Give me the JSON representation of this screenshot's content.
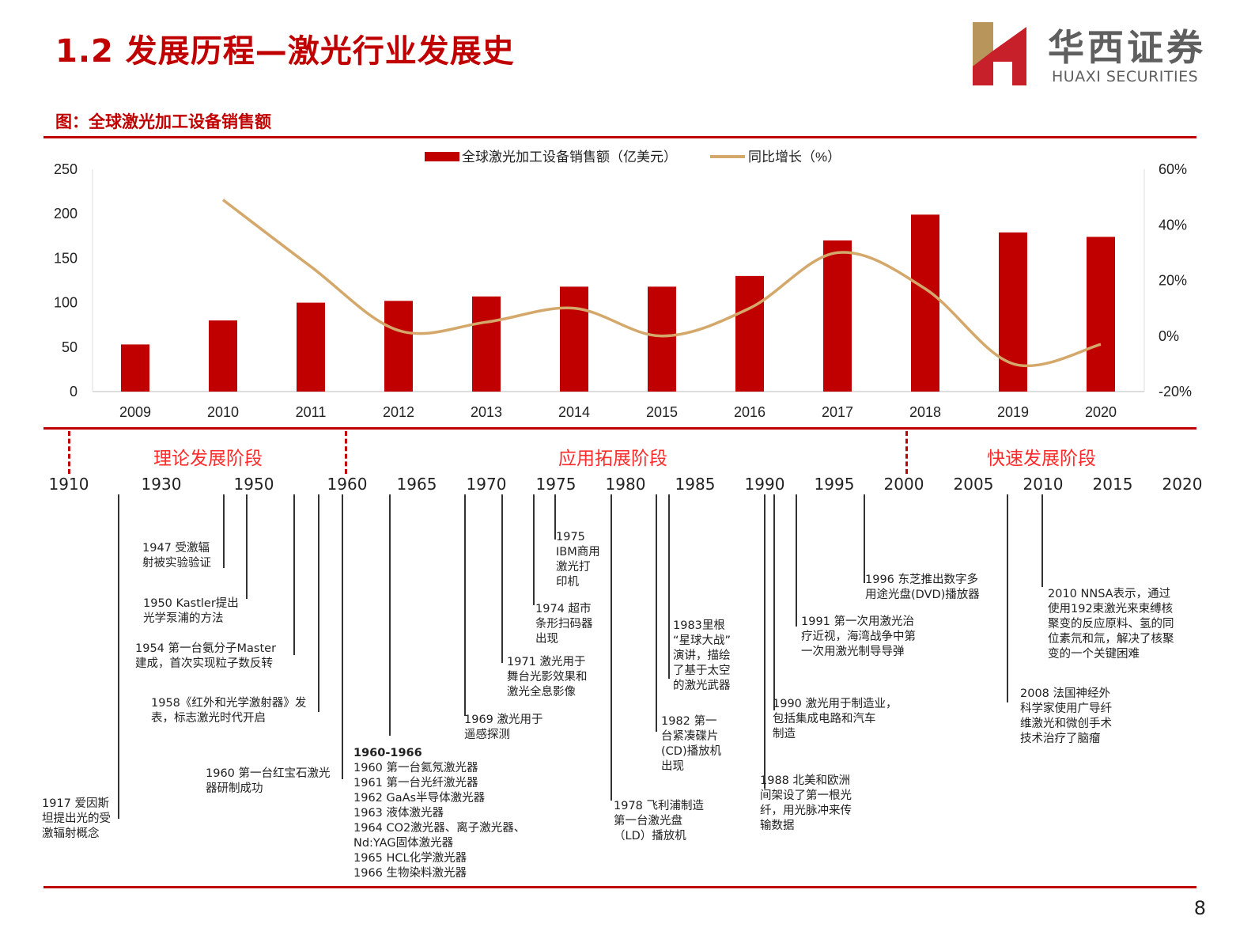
{
  "header": {
    "title": "1.2 发展历程—激光行业发展史",
    "logo_cn": "华西证券",
    "logo_en": "HUAXI SECURITIES"
  },
  "figure_caption": "图：全球激光加工设备销售额",
  "colors": {
    "accent": "#c00000",
    "line": "#d4a86a",
    "phase": "#ff2a2a",
    "logo_gold": "#b8955a",
    "logo_red": "#c8202a"
  },
  "chart_data": {
    "type": "bar+line",
    "categories": [
      "2009",
      "2010",
      "2011",
      "2012",
      "2013",
      "2014",
      "2015",
      "2016",
      "2017",
      "2018",
      "2019",
      "2020"
    ],
    "series": [
      {
        "name": "全球激光加工设备销售额（亿美元）",
        "type": "bar",
        "axis": "left",
        "values": [
          53,
          80,
          100,
          102,
          107,
          118,
          118,
          130,
          170,
          199,
          179,
          174
        ]
      },
      {
        "name": "同比增长（%）",
        "type": "line",
        "axis": "right",
        "values": [
          null,
          49,
          25,
          2,
          5,
          10,
          0,
          10,
          30,
          17,
          -10,
          -3
        ]
      }
    ],
    "left_axis": {
      "range": [
        0,
        250
      ],
      "ticks": [
        "0",
        "50",
        "100",
        "150",
        "200",
        "250"
      ]
    },
    "right_axis": {
      "range": [
        -20,
        60
      ],
      "ticks": [
        "-20%",
        "0%",
        "20%",
        "40%",
        "60%"
      ]
    },
    "legend_position": "top-center",
    "grid": false
  },
  "timeline": {
    "phases": [
      "理论发展阶段",
      "应用拓展阶段",
      "快速发展阶段"
    ],
    "years": [
      "1910",
      "1930",
      "1950",
      "1960",
      "1965",
      "1970",
      "1975",
      "1980",
      "1985",
      "1990",
      "1995",
      "2000",
      "2005",
      "2010",
      "2015",
      "2020"
    ],
    "events": [
      "1917 爱因斯\n坦提出光的受\n激辐射概念",
      "1947 受激辐\n射被实验验证",
      "1950 Kastler提出\n光学泵浦的方法",
      "1954 第一台氨分子Master\n建成，首次实现粒子数反转",
      "1958《红外和光学激射器》发\n表，标志激光时代开启",
      "1960 第一台红宝石激光\n器研制成功",
      "1969 激光用于\n遥感探测",
      "1971 激光用于\n舞台光影效果和\n激光全息影像",
      "1974 超市\n条形扫码器\n出现",
      "1975\nIBM商用\n激光打\n印机",
      "1978 飞利浦制造\n第一台激光盘\n（LD）播放机",
      "1982 第一\n台紧凑碟片\n(CD)播放机\n出现",
      "1983里根\n“星球大战”\n演讲，描绘\n了基于太空\n的激光武器",
      "1988 北美和欧洲\n间架设了第一根光\n纤，用光脉冲来传\n输数据",
      "1990 激光用于制造业，\n包括集成电路和汽车\n制造",
      "1991 第一次用激光治\n疗近视，海湾战争中第\n一次用激光制导导弹",
      "1996 东芝推出数字多\n用途光盘(DVD)播放器",
      "2008 法国神经外\n科学家使用广导纤\n维激光和微创手术\n技术治疗了脑瘤",
      "2010 NNSA表示，通过\n使用192束激光来束缚核\n聚变的反应原料、氢的同\n位素氘和氚，解决了核聚\n变的一个关键困难"
    ],
    "block_title": "1960-1966",
    "block_lines": [
      "1960 第一台氦氖激光器",
      "1961 第一台光纤激光器",
      "1962 GaAs半导体激光器",
      "1963 液体激光器",
      "1964 CO2激光器、离子激光器、",
      "Nd:YAG固体激光器",
      "1965 HCL化学激光器",
      "1966 生物染料激光器"
    ]
  },
  "page_number": "8"
}
